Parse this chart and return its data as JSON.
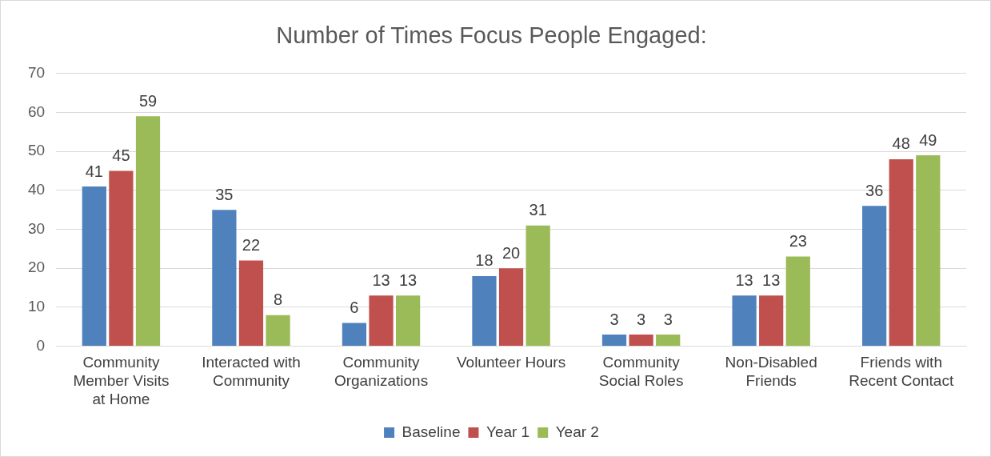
{
  "chart_data": {
    "type": "bar",
    "title": "Number of Times Focus People Engaged:",
    "categories": [
      "Community Member Visits at Home",
      "Interacted with Community",
      "Community Organizations",
      "Volunteer Hours",
      "Community Social Roles",
      "Non-Disabled Friends",
      "Friends with Recent Contact"
    ],
    "series": [
      {
        "name": "Baseline",
        "color": "#4f81bd",
        "values": [
          41,
          35,
          6,
          18,
          3,
          13,
          36
        ]
      },
      {
        "name": "Year 1",
        "color": "#c0504d",
        "values": [
          45,
          22,
          13,
          20,
          3,
          13,
          48
        ]
      },
      {
        "name": "Year 2",
        "color": "#9bbb59",
        "values": [
          59,
          8,
          13,
          31,
          3,
          23,
          49
        ]
      }
    ],
    "ylim": [
      0,
      70
    ],
    "yticks": [
      0,
      10,
      20,
      30,
      40,
      50,
      60,
      70
    ],
    "grid": "y",
    "legend": "bottom",
    "data_labels": true
  }
}
